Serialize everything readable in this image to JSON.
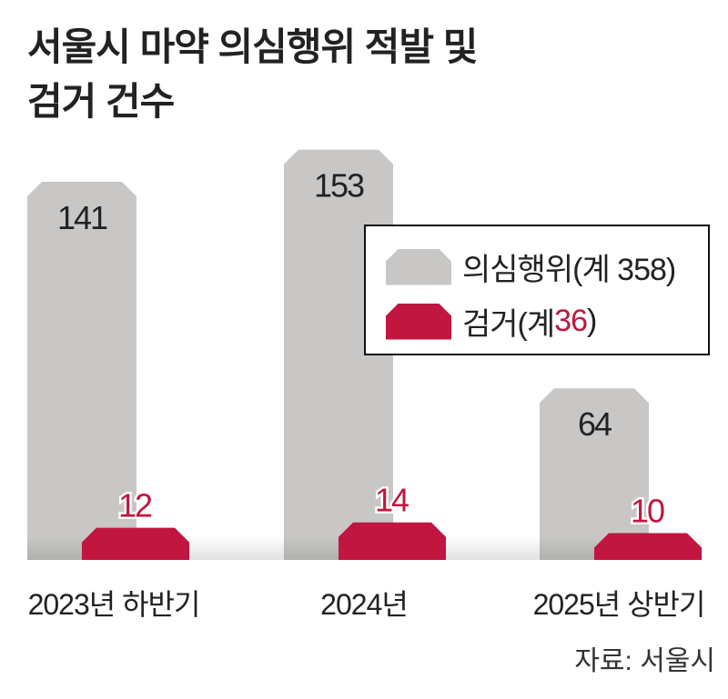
{
  "title_lines": [
    "서울시 마약 의심행위 적발 및",
    "검거 건수"
  ],
  "legend": {
    "suspicious_label": "의심행위(계 358)",
    "arrest_prefix": "검거(계 ",
    "arrest_total": "36",
    "arrest_suffix": ")"
  },
  "source": "자료: 서울시",
  "colors": {
    "suspicious": "#c8c7c5",
    "arrest": "#c0163f"
  },
  "chart_data": {
    "type": "bar",
    "title": "서울시 마약 의심행위 적발 및 검거 건수",
    "categories": [
      "2023년 하반기",
      "2024년",
      "2025년 상반기"
    ],
    "series": [
      {
        "name": "의심행위",
        "total": 358,
        "values": [
          141,
          153,
          64
        ]
      },
      {
        "name": "검거",
        "total": 36,
        "values": [
          12,
          14,
          10
        ]
      }
    ],
    "ylim": [
      0,
      160
    ],
    "legend_position": "right",
    "grid": false
  }
}
